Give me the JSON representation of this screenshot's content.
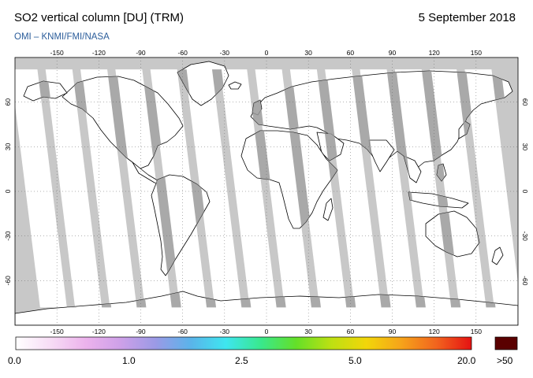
{
  "title": "SO2 vertical column [DU] (TRM)",
  "date": "5 September 2018",
  "credit": "OMI – KNMI/FMI/NASA",
  "map": {
    "projection": "equirectangular",
    "lon_range": [
      -180,
      180
    ],
    "lat_range": [
      -90,
      90
    ],
    "lon_ticks": [
      "-150",
      "-120",
      "-90",
      "-60",
      "-30",
      "0",
      "30",
      "60",
      "90",
      "120",
      "150"
    ],
    "lon_tick_values": [
      -150,
      -120,
      -90,
      -60,
      -30,
      0,
      30,
      60,
      90,
      120,
      150
    ],
    "lat_ticks": [
      "60",
      "30",
      "0",
      "-30",
      "-60"
    ],
    "lat_tick_values": [
      60,
      30,
      0,
      -30,
      -60
    ],
    "gridlines": "dotted",
    "colors": {
      "no_data": "#c8c8c8",
      "land_no_data": "#9b9b9b",
      "coast": "#000000",
      "low_value": "#ffffff"
    },
    "swath_centers_lon": [
      -163,
      -138,
      -113,
      -88,
      -63,
      -38,
      -13,
      12,
      37,
      62,
      87,
      112,
      137,
      162
    ]
  },
  "colorbar": {
    "labels": [
      "0.0",
      "1.0",
      "2.5",
      "5.0",
      "20.0",
      ">50"
    ],
    "overflow_color": "#5a0000",
    "gradient_stops": [
      "#ffffff",
      "#f7dcf5",
      "#ecb2ec",
      "#cda0e8",
      "#9a9ae6",
      "#5ab4ea",
      "#3ee6ef",
      "#39e88c",
      "#64e028",
      "#bde012",
      "#f2d60a",
      "#f6a31a",
      "#f2641e",
      "#e51212"
    ]
  }
}
